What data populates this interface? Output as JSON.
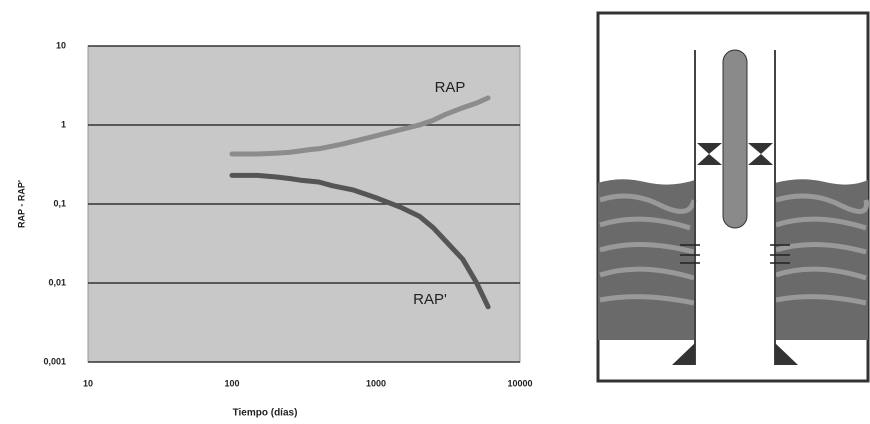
{
  "chart_data": {
    "type": "line",
    "x_label": "Tiempo (días)",
    "y_label": "RAP - RAP'",
    "xlog": true,
    "ylog": true,
    "grid": true,
    "xlim": [
      10,
      10000
    ],
    "ylim": [
      0.001,
      10
    ],
    "xticks": [
      10,
      100,
      1000,
      10000
    ],
    "yticks": [
      {
        "value": 0.001,
        "label": "0,001"
      },
      {
        "value": 0.01,
        "label": "0,01"
      },
      {
        "value": 0.1,
        "label": "0,1"
      },
      1,
      10
    ],
    "series": [
      {
        "name": "RAP",
        "color": "#8c8c8c",
        "x": [
          100,
          150,
          200,
          250,
          300,
          350,
          400,
          500,
          600,
          800,
          1000,
          1500,
          2000,
          2500,
          3000,
          4000,
          5000,
          6000
        ],
        "values": [
          0.43,
          0.43,
          0.44,
          0.45,
          0.47,
          0.49,
          0.5,
          0.54,
          0.58,
          0.66,
          0.73,
          0.88,
          1.0,
          1.15,
          1.35,
          1.65,
          1.9,
          2.2
        ]
      },
      {
        "name": "RAP'",
        "color": "#555555",
        "x": [
          100,
          150,
          200,
          250,
          300,
          400,
          500,
          700,
          1000,
          1500,
          2000,
          2500,
          3000,
          4000,
          5000,
          6000
        ],
        "values": [
          0.23,
          0.23,
          0.22,
          0.21,
          0.2,
          0.19,
          0.17,
          0.15,
          0.12,
          0.09,
          0.07,
          0.05,
          0.035,
          0.02,
          0.01,
          0.005
        ]
      }
    ]
  }
}
